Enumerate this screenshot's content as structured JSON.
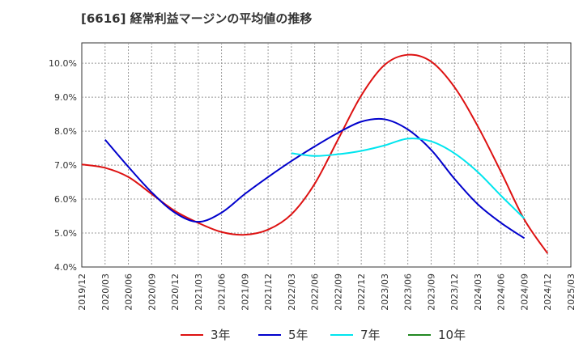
{
  "chart_data": {
    "type": "line",
    "title": "[6616]  経常利益マージンの平均値の推移",
    "xlabel": "",
    "ylabel": "",
    "x": [
      "2019/12",
      "2020/03",
      "2020/06",
      "2020/09",
      "2020/12",
      "2021/03",
      "2021/06",
      "2021/09",
      "2021/12",
      "2022/03",
      "2022/06",
      "2022/09",
      "2022/12",
      "2023/03",
      "2023/06",
      "2023/09",
      "2023/12",
      "2024/03",
      "2024/06",
      "2024/09",
      "2024/12",
      "2025/03"
    ],
    "y_ticks": [
      "4.0%",
      "5.0%",
      "6.0%",
      "7.0%",
      "8.0%",
      "9.0%",
      "10.0%"
    ],
    "ylim": [
      4.0,
      10.6
    ],
    "grid": true,
    "legend_position": "bottom",
    "series": [
      {
        "name": "3年",
        "color": "#dd1111",
        "values": [
          7.02,
          6.92,
          6.65,
          6.15,
          5.65,
          5.3,
          5.03,
          4.95,
          5.1,
          5.55,
          6.45,
          7.75,
          9.05,
          9.95,
          10.25,
          10.05,
          9.3,
          8.15,
          6.8,
          5.4,
          4.4,
          null
        ]
      },
      {
        "name": "5年",
        "color": "#0000cc",
        "values": [
          null,
          7.75,
          6.95,
          6.2,
          5.6,
          5.33,
          5.6,
          6.15,
          6.65,
          7.12,
          7.55,
          7.95,
          8.28,
          8.35,
          8.05,
          7.45,
          6.6,
          5.85,
          5.3,
          4.85,
          null,
          null
        ]
      },
      {
        "name": "7年",
        "color": "#00e5ee",
        "values": [
          null,
          null,
          null,
          null,
          null,
          null,
          null,
          null,
          null,
          7.35,
          7.27,
          7.32,
          7.42,
          7.58,
          7.78,
          7.7,
          7.35,
          6.8,
          6.1,
          5.43,
          null,
          null
        ]
      },
      {
        "name": "10年",
        "color": "#228822",
        "values": [
          null,
          null,
          null,
          null,
          null,
          null,
          null,
          null,
          null,
          null,
          null,
          null,
          null,
          null,
          null,
          null,
          null,
          null,
          null,
          null,
          null,
          null
        ]
      }
    ]
  }
}
